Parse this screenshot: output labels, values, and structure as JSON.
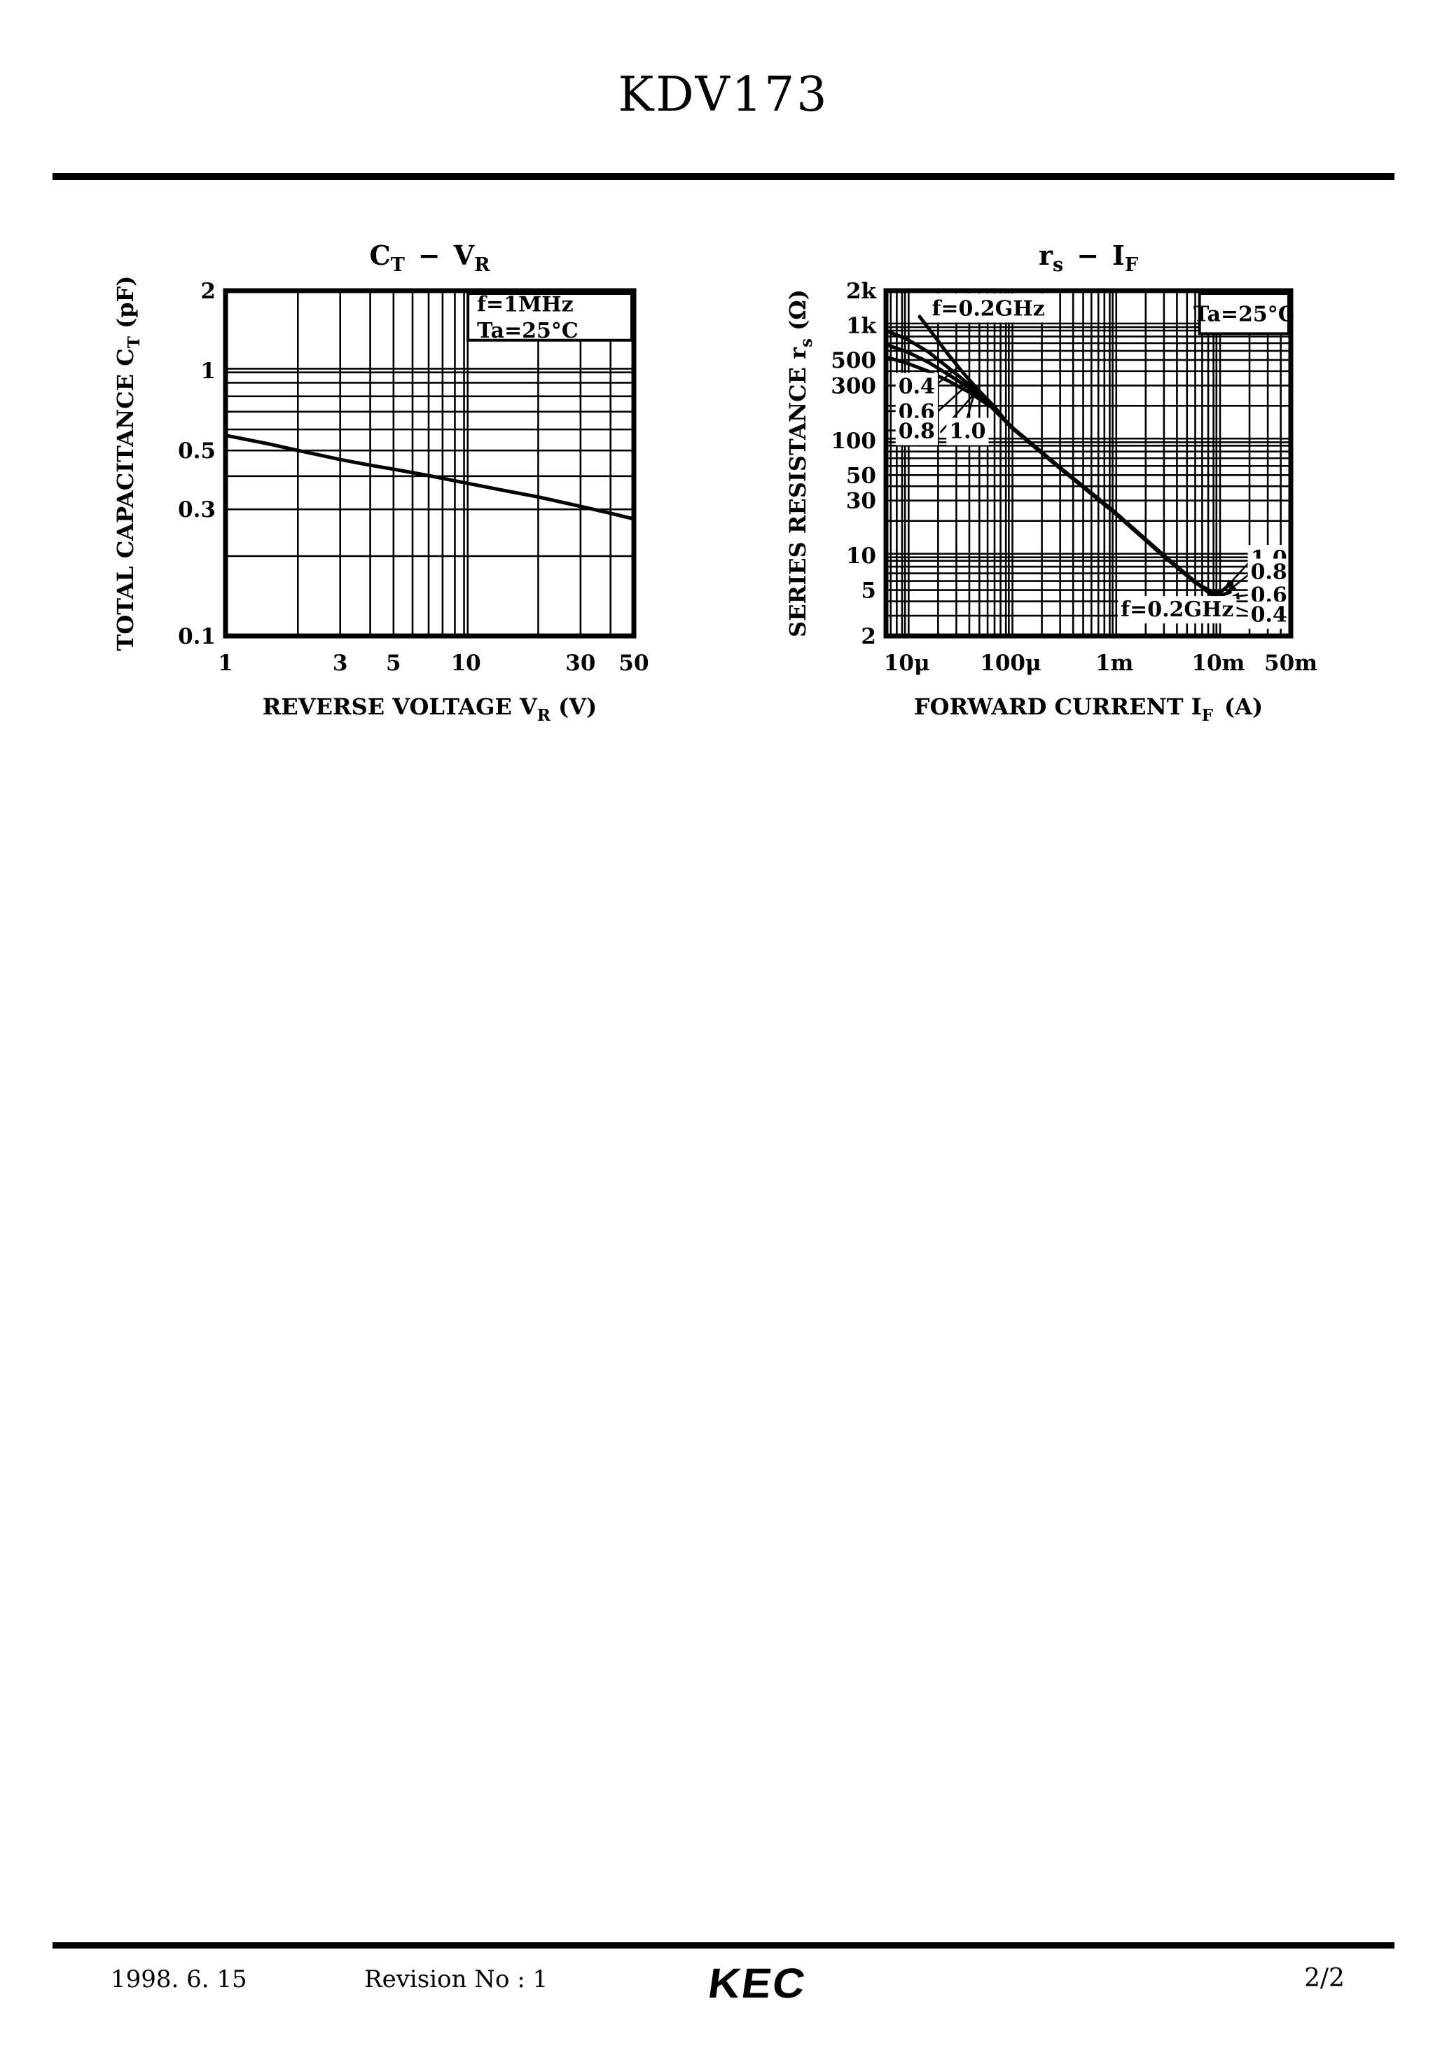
{
  "header": {
    "title": "KDV173"
  },
  "footer": {
    "date": "1998. 6. 15",
    "revision": "Revision No : 1",
    "logo": "KEC",
    "page": "2/2"
  },
  "colors": {
    "ink": "#000000",
    "paper": "#ffffff"
  },
  "chart_data": [
    {
      "type": "line",
      "title": "CT − VR",
      "title_segments": [
        {
          "t": "C"
        },
        {
          "t": "T",
          "sub": true
        },
        {
          "t": " − V"
        },
        {
          "t": "R",
          "sub": true
        }
      ],
      "x_axis": {
        "scale": "log",
        "min": 1,
        "max": 50,
        "title": "REVERSE VOLTAGE VR (V)",
        "title_segments": [
          {
            "t": "REVERSE VOLTAGE V"
          },
          {
            "t": "R",
            "sub": true
          },
          {
            "t": " (V)"
          }
        ],
        "ticks": [
          [
            "1",
            1
          ],
          [
            "3",
            3
          ],
          [
            "5",
            5
          ],
          [
            "10",
            10
          ],
          [
            "30",
            30
          ],
          [
            "50",
            50
          ]
        ]
      },
      "y_axis": {
        "scale": "log",
        "min": 0.1,
        "max": 2,
        "title": "TOTAL CAPACITANCE CT (pF)",
        "title_segments": [
          {
            "t": "TOTAL CAPACITANCE C"
          },
          {
            "t": "T",
            "sub": true
          },
          {
            "t": " (pF)"
          }
        ],
        "ticks": [
          [
            "2",
            2
          ],
          [
            "1",
            1
          ],
          [
            "0.5",
            0.5
          ],
          [
            "0.3",
            0.3
          ],
          [
            "0.1",
            0.1
          ]
        ]
      },
      "series": [
        {
          "name": "CT",
          "points": [
            [
              1,
              0.57
            ],
            [
              1.5,
              0.53
            ],
            [
              2,
              0.5
            ],
            [
              3,
              0.462
            ],
            [
              4,
              0.44
            ],
            [
              5,
              0.425
            ],
            [
              7,
              0.402
            ],
            [
              10,
              0.377
            ],
            [
              15,
              0.351
            ],
            [
              20,
              0.334
            ],
            [
              30,
              0.308
            ],
            [
              40,
              0.29
            ],
            [
              50,
              0.276
            ]
          ]
        }
      ],
      "annotations": {
        "boxes": [
          {
            "lines": [
              "f=1MHz",
              "Ta=25°C"
            ],
            "x1": 10,
            "x2": 50,
            "y1": 1.27,
            "y2": 2,
            "border": true,
            "align": "left"
          }
        ],
        "labels": []
      }
    },
    {
      "type": "line",
      "title": "rs − IF",
      "title_segments": [
        {
          "t": "r"
        },
        {
          "t": "s",
          "sub": true
        },
        {
          "t": " − I"
        },
        {
          "t": "F",
          "sub": true
        }
      ],
      "x_axis": {
        "scale": "log",
        "min": 6.3e-06,
        "max": 0.05,
        "title": "FORWARD CURRENT IF (A)",
        "title_segments": [
          {
            "t": "FORWARD CURRENT I"
          },
          {
            "t": "F",
            "sub": true
          },
          {
            "t": " (A)"
          }
        ],
        "ticks": [
          [
            "10μ",
            1e-05
          ],
          [
            "100μ",
            0.0001
          ],
          [
            "1m",
            0.001
          ],
          [
            "10m",
            0.01
          ],
          [
            "50m",
            0.05
          ]
        ]
      },
      "y_axis": {
        "scale": "log",
        "min": 2,
        "max": 2000,
        "title": "SERIES RESISTANCE rs (Ω)",
        "title_segments": [
          {
            "t": "SERIES RESISTANCE r"
          },
          {
            "t": "s",
            "sub": true
          },
          {
            "t": " (Ω)"
          }
        ],
        "ticks": [
          [
            "2k",
            2000
          ],
          [
            "1k",
            1000
          ],
          [
            "500",
            500
          ],
          [
            "300",
            300
          ],
          [
            "100",
            100
          ],
          [
            "50",
            50
          ],
          [
            "30",
            30
          ],
          [
            "10",
            10
          ],
          [
            "5",
            5
          ],
          [
            "2",
            2
          ]
        ]
      },
      "series": [
        {
          "name": "0.4",
          "points": [
            [
              6.3e-06,
              900
            ],
            [
              1e-05,
              760
            ],
            [
              1.6e-05,
              590
            ],
            [
              2.5e-05,
              430
            ],
            [
              4e-05,
              305
            ],
            [
              6.5e-05,
              205
            ],
            [
              0.0001,
              133
            ],
            [
              0.0003,
              58
            ],
            [
              0.001,
              24
            ],
            [
              0.003,
              10
            ],
            [
              0.006,
              5.9
            ],
            [
              0.0085,
              4.6
            ],
            [
              0.0102,
              3.9
            ],
            [
              0.0125,
              3.4
            ]
          ]
        },
        {
          "name": "0.6",
          "points": [
            [
              6.3e-06,
              680
            ],
            [
              1e-05,
              590
            ],
            [
              1.6e-05,
              480
            ],
            [
              2.5e-05,
              375
            ],
            [
              4e-05,
              285
            ],
            [
              6.5e-05,
              200
            ],
            [
              0.0001,
              133
            ],
            [
              0.0003,
              58
            ],
            [
              0.001,
              24
            ],
            [
              0.003,
              10
            ],
            [
              0.006,
              5.9
            ],
            [
              0.0085,
              4.7
            ],
            [
              0.0105,
              4.2
            ],
            [
              0.013,
              4.1
            ]
          ]
        },
        {
          "name": "0.8",
          "points": [
            [
              6.3e-06,
              530
            ],
            [
              1e-05,
              470
            ],
            [
              1.6e-05,
              400
            ],
            [
              2.5e-05,
              330
            ],
            [
              4e-05,
              262
            ],
            [
              6.5e-05,
              195
            ],
            [
              0.0001,
              132
            ],
            [
              0.0003,
              58
            ],
            [
              0.001,
              24
            ],
            [
              0.003,
              10
            ],
            [
              0.006,
              5.9
            ],
            [
              0.0085,
              4.8
            ],
            [
              0.0105,
              4.5
            ],
            [
              0.013,
              4.8
            ]
          ]
        },
        {
          "name": "1.0",
          "points": [
            [
              1.33e-05,
              1190
            ],
            [
              1.8e-05,
              830
            ],
            [
              2.5e-05,
              560
            ],
            [
              3.5e-05,
              385
            ],
            [
              5e-05,
              268
            ],
            [
              7e-05,
              196
            ],
            [
              0.0001,
              131
            ],
            [
              0.0003,
              57
            ],
            [
              0.001,
              23.5
            ],
            [
              0.003,
              9.8
            ],
            [
              0.006,
              5.8
            ],
            [
              0.0085,
              4.9
            ],
            [
              0.0105,
              4.8
            ],
            [
              0.0135,
              5.8
            ]
          ]
        }
      ],
      "annotations": {
        "boxes": [
          {
            "lines": [
              "f=0.2GHz"
            ],
            "x1": 1.28e-05,
            "x2": 0.00029,
            "y1": 1000,
            "y2": 2000,
            "border": false,
            "align": "center"
          },
          {
            "lines": [
              "Ta=25°C"
            ],
            "x1": 0.0063,
            "x2": 0.05,
            "y1": 800,
            "y2": 2000,
            "border": true,
            "align": "center"
          }
        ],
        "labels": [
          {
            "text": "0.4",
            "x": 8.3e-06,
            "y": 300,
            "dash": true,
            "leader": [
              [
                1.75e-05,
                285
              ],
              [
                3.1e-05,
                430
              ]
            ]
          },
          {
            "text": "0.6",
            "x": 8.3e-06,
            "y": 180,
            "dash": true,
            "leader": [
              [
                1.9e-05,
                172
              ],
              [
                4e-05,
                315
              ]
            ]
          },
          {
            "text": "0.8",
            "x": 8.3e-06,
            "y": 122,
            "dash": true,
            "leader": [
              [
                2.1e-05,
                117
              ],
              [
                4.6e-05,
                262
              ]
            ]
          },
          {
            "text": "1.0",
            "x": 2.56e-05,
            "y": 122,
            "dash": false,
            "leader": [
              [
                3.7e-05,
                142
              ],
              [
                4.7e-05,
                300
              ]
            ]
          },
          {
            "text": "1.0",
            "x": 0.0205,
            "y": 9.6,
            "arrow": [
              [
                0.02,
                8.8
              ],
              [
                0.0115,
                5.1
              ]
            ]
          },
          {
            "text": "0.8",
            "x": 0.0205,
            "y": 7.3,
            "arrow": [
              [
                0.02,
                6.9
              ],
              [
                0.012,
                4.8
              ]
            ]
          },
          {
            "text": "0.6",
            "x": 0.0205,
            "y": 4.6,
            "arrow": [
              [
                0.02,
                4.55
              ],
              [
                0.0128,
                4.35
              ]
            ]
          },
          {
            "text": "0.4",
            "x": 0.0205,
            "y": 3.1,
            "arrow": [
              [
                0.02,
                3.2
              ],
              [
                0.0115,
                3.85
              ]
            ]
          },
          {
            "text": "f=0.2GHz",
            "x": 0.00115,
            "y": 3.45,
            "arrow": [
              [
                0.0046,
                3.6
              ],
              [
                0.0096,
                4.2
              ]
            ]
          }
        ]
      }
    }
  ]
}
